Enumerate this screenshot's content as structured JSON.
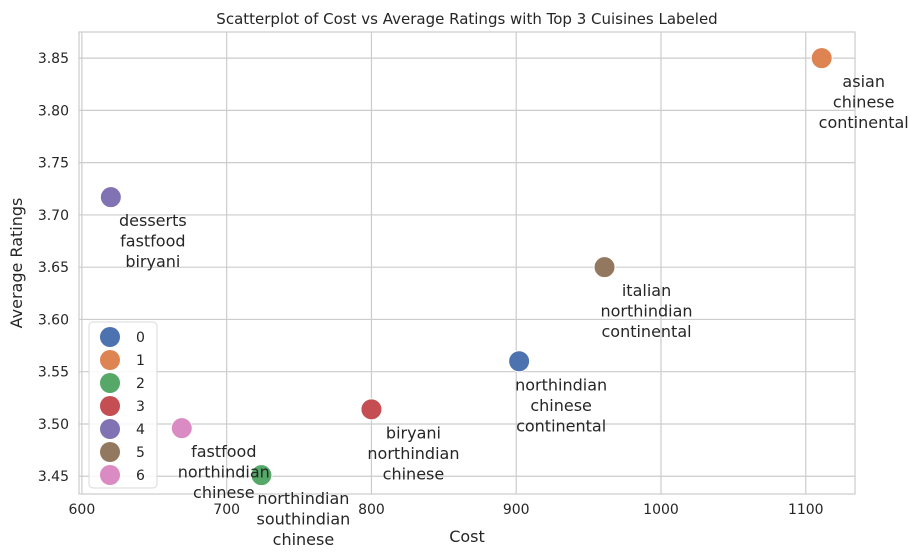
{
  "chart_data": {
    "type": "scatter",
    "title": "Scatterplot of Cost vs Average Ratings with Top 3 Cuisines Labeled",
    "xlabel": "Cost",
    "ylabel": "Average Ratings",
    "xlim": [
      598,
      1134
    ],
    "ylim": [
      3.433,
      3.875
    ],
    "xticks": [
      600,
      700,
      800,
      900,
      1000,
      1100
    ],
    "yticks": [
      3.45,
      3.5,
      3.55,
      3.6,
      3.65,
      3.7,
      3.75,
      3.8,
      3.85
    ],
    "grid": true,
    "legend_position": "lower-left",
    "series": [
      {
        "name": "0",
        "color": "#4c72b0",
        "x": 902,
        "y": 3.56,
        "cuisines": [
          "northindian",
          "chinese",
          "continental"
        ]
      },
      {
        "name": "1",
        "color": "#dd8452",
        "x": 1111,
        "y": 3.85,
        "cuisines": [
          "asian",
          "chinese",
          "continental"
        ]
      },
      {
        "name": "2",
        "color": "#55a868",
        "x": 724,
        "y": 3.451,
        "cuisines": [
          "northindian",
          "southindian",
          "chinese"
        ]
      },
      {
        "name": "3",
        "color": "#c44e52",
        "x": 800,
        "y": 3.514,
        "cuisines": [
          "biryani",
          "northindian",
          "chinese"
        ]
      },
      {
        "name": "4",
        "color": "#8172b3",
        "x": 620,
        "y": 3.717,
        "cuisines": [
          "desserts",
          "fastfood",
          "biryani"
        ]
      },
      {
        "name": "5",
        "color": "#937860",
        "x": 961,
        "y": 3.65,
        "cuisines": [
          "italian",
          "northindian",
          "continental"
        ]
      },
      {
        "name": "6",
        "color": "#da8bc3",
        "x": 669,
        "y": 3.496,
        "cuisines": [
          "fastfood",
          "northindian",
          "chinese"
        ]
      }
    ]
  }
}
